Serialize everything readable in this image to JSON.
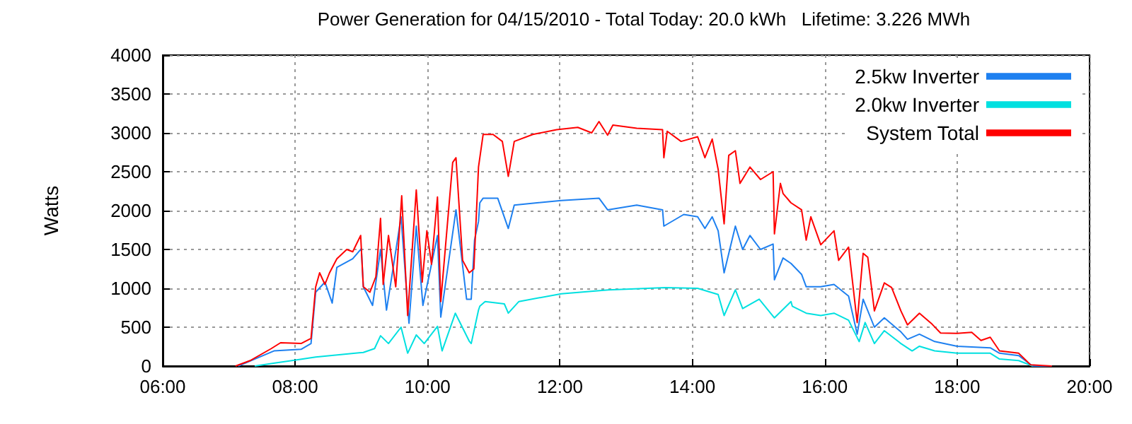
{
  "chart_data": {
    "type": "line",
    "title": "Power Generation for 04/15/2010 - Total Today: 20.0 kWh   Lifetime: 3.226 MWh",
    "ylabel": "Watts",
    "xlim": [
      6,
      20
    ],
    "xticks": [
      {
        "value": 6,
        "label": "06:00"
      },
      {
        "value": 8,
        "label": "08:00"
      },
      {
        "value": 10,
        "label": "10:00"
      },
      {
        "value": 12,
        "label": "12:00"
      },
      {
        "value": 14,
        "label": "14:00"
      },
      {
        "value": 16,
        "label": "16:00"
      },
      {
        "value": 18,
        "label": "18:00"
      },
      {
        "value": 20,
        "label": "20:00"
      }
    ],
    "ylim": [
      0,
      4000
    ],
    "yticks": [
      0,
      500,
      1000,
      1500,
      2000,
      2500,
      3000,
      3500,
      4000
    ],
    "grid": true,
    "legend": "top right",
    "marker": "none",
    "line_style": "solid",
    "series": [
      {
        "name": "2.5kw Inverter",
        "color": "#1e80f0",
        "x": [
          7.14,
          7.68,
          8.09,
          8.24,
          8.31,
          8.45,
          8.56,
          8.63,
          8.87,
          9.0,
          9.03,
          9.17,
          9.29,
          9.38,
          9.48,
          9.6,
          9.72,
          9.83,
          9.93,
          10.15,
          10.2,
          10.43,
          10.59,
          10.66,
          10.71,
          10.77,
          10.79,
          10.84,
          11.06,
          11.22,
          11.31,
          12.02,
          12.59,
          12.72,
          13.16,
          13.55,
          13.57,
          13.87,
          14.08,
          14.19,
          14.3,
          14.39,
          14.48,
          14.65,
          14.76,
          14.87,
          15.03,
          15.22,
          15.24,
          15.37,
          15.49,
          15.65,
          15.72,
          15.94,
          16.14,
          16.36,
          16.49,
          16.58,
          16.75,
          16.9,
          17.15,
          17.25,
          17.43,
          17.66,
          18.0,
          18.5,
          18.64,
          18.93,
          19.14,
          19.43
        ],
        "values": [
          0,
          195,
          215,
          290,
          950,
          1080,
          810,
          1270,
          1380,
          1510,
          1020,
          780,
          1500,
          720,
          1260,
          1920,
          550,
          1800,
          780,
          1680,
          630,
          2010,
          860,
          860,
          1620,
          1860,
          2100,
          2160,
          2160,
          1770,
          2070,
          2130,
          2160,
          2010,
          2070,
          2010,
          1800,
          1950,
          1920,
          1770,
          1920,
          1740,
          1200,
          1800,
          1500,
          1680,
          1500,
          1570,
          1110,
          1390,
          1320,
          1180,
          1020,
          1020,
          1050,
          900,
          410,
          860,
          500,
          620,
          440,
          345,
          410,
          315,
          255,
          235,
          165,
          135,
          0,
          0
        ]
      },
      {
        "name": "2.0kw Inverter",
        "color": "#00e0e0",
        "x": [
          7.39,
          7.71,
          8.31,
          9.03,
          9.2,
          9.29,
          9.41,
          9.6,
          9.7,
          9.83,
          9.95,
          10.15,
          10.22,
          10.42,
          10.63,
          10.66,
          10.77,
          10.79,
          10.87,
          11.16,
          11.22,
          11.38,
          12.02,
          12.73,
          13.59,
          14.08,
          14.39,
          14.48,
          14.65,
          14.76,
          15.01,
          15.24,
          15.49,
          15.51,
          15.72,
          15.94,
          16.14,
          16.36,
          16.52,
          16.61,
          16.75,
          16.9,
          17.15,
          17.32,
          17.43,
          17.66,
          18.0,
          18.5,
          18.64,
          18.93,
          19.14
        ],
        "values": [
          0,
          40,
          115,
          175,
          225,
          390,
          290,
          500,
          165,
          400,
          290,
          510,
          195,
          680,
          320,
          290,
          720,
          770,
          830,
          800,
          680,
          830,
          930,
          980,
          1010,
          1000,
          920,
          650,
          980,
          740,
          860,
          620,
          830,
          770,
          680,
          650,
          680,
          590,
          315,
          560,
          290,
          455,
          290,
          195,
          255,
          195,
          165,
          165,
          90,
          70,
          0
        ]
      },
      {
        "name": "System Total",
        "color": "#ff0000",
        "x": [
          7.1,
          7.32,
          7.64,
          7.78,
          8.09,
          8.24,
          8.31,
          8.37,
          8.45,
          8.52,
          8.63,
          8.78,
          8.87,
          8.99,
          9.03,
          9.13,
          9.22,
          9.29,
          9.33,
          9.41,
          9.52,
          9.61,
          9.7,
          9.83,
          9.92,
          9.99,
          10.06,
          10.15,
          10.2,
          10.38,
          10.43,
          10.53,
          10.63,
          10.7,
          10.77,
          10.84,
          10.99,
          11.13,
          11.22,
          11.31,
          11.59,
          11.95,
          12.27,
          12.48,
          12.59,
          12.72,
          12.8,
          13.16,
          13.55,
          13.57,
          13.62,
          13.83,
          14.08,
          14.19,
          14.3,
          14.39,
          14.48,
          14.55,
          14.65,
          14.72,
          14.87,
          15.03,
          15.22,
          15.24,
          15.33,
          15.37,
          15.49,
          15.65,
          15.72,
          15.79,
          15.94,
          16.14,
          16.21,
          16.36,
          16.49,
          16.58,
          16.65,
          16.75,
          16.9,
          17.01,
          17.15,
          17.25,
          17.43,
          17.62,
          17.75,
          18.0,
          18.22,
          18.36,
          18.5,
          18.64,
          18.93,
          19.11,
          19.43
        ],
        "values": [
          0,
          70,
          225,
          300,
          290,
          355,
          1015,
          1200,
          1050,
          1200,
          1380,
          1500,
          1470,
          1680,
          1020,
          950,
          1150,
          1900,
          1050,
          1680,
          1020,
          2190,
          650,
          2265,
          1080,
          1740,
          1310,
          2175,
          830,
          2620,
          2680,
          1360,
          1200,
          1250,
          2560,
          2980,
          2980,
          2890,
          2440,
          2890,
          2980,
          3040,
          3070,
          3000,
          3145,
          2970,
          3100,
          3060,
          3040,
          2680,
          3020,
          2890,
          2950,
          2680,
          2920,
          2530,
          1830,
          2710,
          2770,
          2350,
          2560,
          2400,
          2500,
          1700,
          2350,
          2220,
          2100,
          2010,
          1620,
          1920,
          1560,
          1740,
          1360,
          1530,
          560,
          1450,
          1400,
          710,
          1070,
          1010,
          710,
          530,
          680,
          540,
          425,
          420,
          435,
          330,
          370,
          195,
          165,
          15,
          0
        ]
      }
    ]
  }
}
